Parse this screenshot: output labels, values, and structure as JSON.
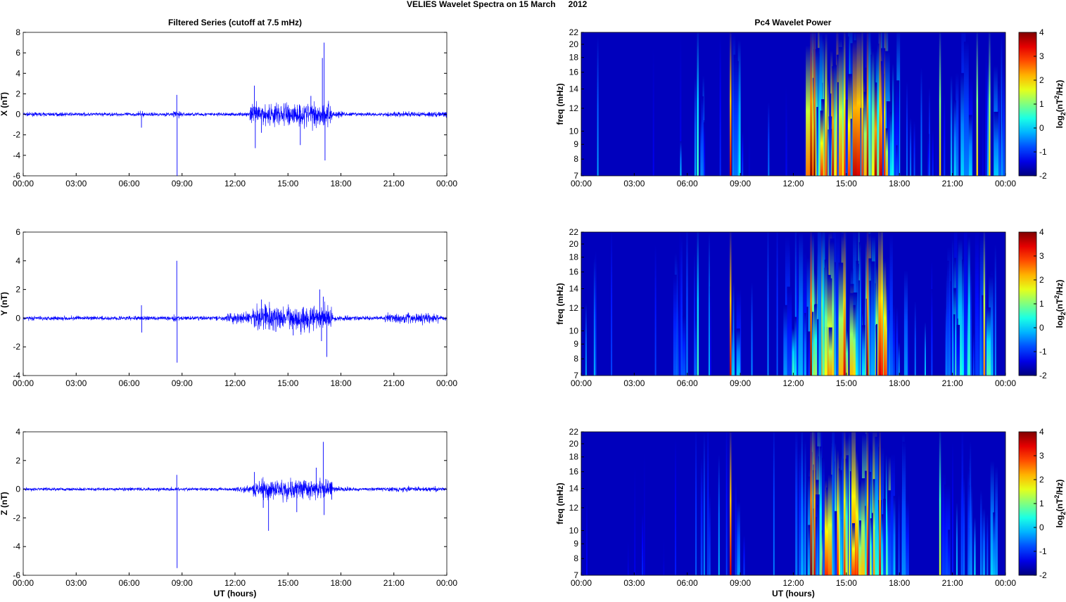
{
  "title_main": "VELIES Wavelet Spectra on 15 March",
  "title_year": "2012",
  "chart_data": {
    "left_title": "Filtered Series (cutoff at 7.5 mHz)",
    "right_title": "Pc4 Wavelet Power",
    "xlabel": "UT (hours)",
    "x_ticks": [
      "00:00",
      "03:00",
      "06:00",
      "09:00",
      "12:00",
      "15:00",
      "18:00",
      "21:00",
      "00:00"
    ],
    "xlim_hours": [
      0,
      24
    ],
    "freq_label": "freq (mHz)",
    "freq_ticks": [
      7,
      8,
      9,
      10,
      12,
      14,
      16,
      18,
      20,
      22
    ],
    "freq_lim": [
      7,
      22
    ],
    "colorbar_label": "log2(nT^2/Hz)",
    "colorbar_ticks": [
      -2,
      -1,
      0,
      1,
      2,
      3,
      4
    ],
    "colorbar_lim": [
      -2,
      4
    ],
    "series_color": "#0000ff",
    "panels": [
      {
        "name": "X",
        "ylabel": "X (nT)",
        "ylim": [
          -6,
          8
        ],
        "yticks": [
          -6,
          -4,
          -2,
          0,
          2,
          4,
          6,
          8
        ],
        "noise": 0.12,
        "activity": [
          [
            6.5,
            7.0,
            1.5
          ],
          [
            8.5,
            9.0,
            2
          ],
          [
            12.8,
            14.2,
            6
          ],
          [
            14.2,
            17.5,
            7
          ],
          [
            17.5,
            18.2,
            2
          ],
          [
            20.5,
            22.5,
            1.5
          ],
          [
            22.5,
            24,
            1.5
          ]
        ],
        "spikes": [
          [
            6.7,
            -1.3
          ],
          [
            8.7,
            1.9
          ],
          [
            8.72,
            -6
          ],
          [
            13.1,
            2.8
          ],
          [
            13.15,
            -3.3
          ],
          [
            15.7,
            -3.0
          ],
          [
            16.3,
            1.8
          ],
          [
            16.95,
            5.5
          ],
          [
            17.05,
            7.0
          ],
          [
            17.1,
            -4.5
          ],
          [
            13.5,
            -1.8
          ]
        ],
        "lines": [
          [
            6.6,
            0.6
          ],
          [
            8.45,
            3.5
          ],
          [
            13.0,
            4
          ],
          [
            13.2,
            4
          ],
          [
            14.9,
            3
          ],
          [
            15.9,
            3
          ],
          [
            16.2,
            3.8
          ],
          [
            16.9,
            3.5
          ],
          [
            20.3,
            2
          ],
          [
            22.4,
            2
          ],
          [
            23.1,
            2
          ]
        ]
      },
      {
        "name": "Y",
        "ylabel": "Y (nT)",
        "ylim": [
          -4,
          6
        ],
        "yticks": [
          -4,
          -2,
          0,
          2,
          4,
          6
        ],
        "noise": 0.1,
        "activity": [
          [
            5.0,
            7.0,
            1
          ],
          [
            8.5,
            9.0,
            1.5
          ],
          [
            11.5,
            13.0,
            2.5
          ],
          [
            13.0,
            17.5,
            6
          ],
          [
            17.5,
            18.5,
            1.5
          ],
          [
            20.5,
            23.5,
            2.5
          ]
        ],
        "spikes": [
          [
            6.7,
            0.9
          ],
          [
            6.72,
            -1.0
          ],
          [
            8.7,
            4.0
          ],
          [
            8.72,
            -3.1
          ],
          [
            13.5,
            1.3
          ],
          [
            15.3,
            -1.2
          ],
          [
            16.8,
            2.0
          ],
          [
            16.9,
            -1.6
          ],
          [
            17.2,
            -2.7
          ],
          [
            17.0,
            1.5
          ]
        ],
        "lines": [
          [
            6.6,
            0.6
          ],
          [
            8.45,
            3.5
          ],
          [
            13.0,
            4
          ],
          [
            14.9,
            3.5
          ],
          [
            16.2,
            3.8
          ],
          [
            16.9,
            3.5
          ],
          [
            22.8,
            2.5
          ]
        ]
      },
      {
        "name": "Z",
        "ylabel": "Z (nT)",
        "ylim": [
          -6,
          4
        ],
        "yticks": [
          -6,
          -4,
          -2,
          0,
          2,
          4
        ],
        "noise": 0.08,
        "activity": [
          [
            6.5,
            7.0,
            0.5
          ],
          [
            8.5,
            9.0,
            1
          ],
          [
            12.0,
            13.0,
            2
          ],
          [
            13.0,
            17.5,
            6
          ],
          [
            17.5,
            18.5,
            1.5
          ],
          [
            20.5,
            23.5,
            1.5
          ]
        ],
        "spikes": [
          [
            8.7,
            1.0
          ],
          [
            8.72,
            -5.5
          ],
          [
            13.1,
            1.2
          ],
          [
            13.9,
            -2.9
          ],
          [
            15.5,
            -1.6
          ],
          [
            16.6,
            1.5
          ],
          [
            17.0,
            3.3
          ],
          [
            17.05,
            -1.8
          ],
          [
            13.6,
            -1.3
          ]
        ],
        "lines": [
          [
            8.45,
            3.5
          ],
          [
            13.0,
            4
          ],
          [
            13.2,
            3.5
          ],
          [
            14.9,
            3
          ],
          [
            16.2,
            3.5
          ],
          [
            16.9,
            3.5
          ],
          [
            20.3,
            1.5
          ]
        ]
      }
    ]
  }
}
